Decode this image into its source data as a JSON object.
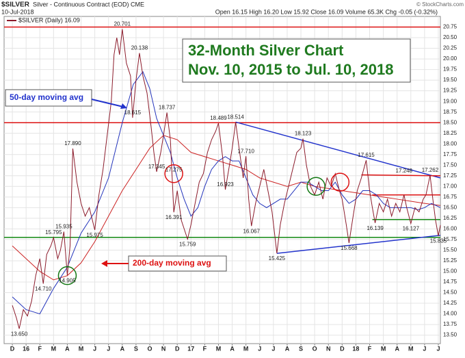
{
  "header": {
    "symbol": "$SILVER",
    "name": "Silver - Continuous Contract (EOD) CME",
    "date": "10-Jul-2018",
    "quote": "Open 16.15  High 16.20  Low 15.92  Close 16.09  Volume 65.3K  Chg -0.05 (-0.32%)",
    "credit": "© StockCharts.com"
  },
  "chart_data": {
    "type": "line",
    "legend": "$SILVER (Daily) 16.09",
    "xlim": [
      -0.6,
      31.15
    ],
    "xticks": [
      {
        "value": 0,
        "label": "D"
      },
      {
        "value": 1,
        "label": "16"
      },
      {
        "value": 2,
        "label": "F"
      },
      {
        "value": 3,
        "label": "M"
      },
      {
        "value": 4,
        "label": "A"
      },
      {
        "value": 5,
        "label": "M"
      },
      {
        "value": 6,
        "label": "J"
      },
      {
        "value": 7,
        "label": "J"
      },
      {
        "value": 8,
        "label": "A"
      },
      {
        "value": 9,
        "label": "S"
      },
      {
        "value": 10,
        "label": "O"
      },
      {
        "value": 11,
        "label": "N"
      },
      {
        "value": 12,
        "label": "D"
      },
      {
        "value": 13,
        "label": "17"
      },
      {
        "value": 14,
        "label": "F"
      },
      {
        "value": 15,
        "label": "M"
      },
      {
        "value": 16,
        "label": "A"
      },
      {
        "value": 17,
        "label": "M"
      },
      {
        "value": 18,
        "label": "J"
      },
      {
        "value": 19,
        "label": "J"
      },
      {
        "value": 20,
        "label": "A"
      },
      {
        "value": 21,
        "label": "S"
      },
      {
        "value": 22,
        "label": "O"
      },
      {
        "value": 23,
        "label": "N"
      },
      {
        "value": 24,
        "label": "D"
      },
      {
        "value": 25,
        "label": "18"
      },
      {
        "value": 26,
        "label": "F"
      },
      {
        "value": 27,
        "label": "M"
      },
      {
        "value": 28,
        "label": "A"
      },
      {
        "value": 29,
        "label": "M"
      },
      {
        "value": 30,
        "label": "J"
      },
      {
        "value": 31,
        "label": "J"
      }
    ],
    "ylim": [
      13.3,
      21.0
    ],
    "yticks": [
      {
        "value": 13.5,
        "label": "13.50"
      },
      {
        "value": 13.75,
        "label": "13.75"
      },
      {
        "value": 14,
        "label": "14.00"
      },
      {
        "value": 14.25,
        "label": "14.25"
      },
      {
        "value": 14.5,
        "label": "14.50"
      },
      {
        "value": 14.75,
        "label": "14.75"
      },
      {
        "value": 15,
        "label": "15.00"
      },
      {
        "value": 15.25,
        "label": "15.25"
      },
      {
        "value": 15.5,
        "label": "15.50"
      },
      {
        "value": 15.75,
        "label": "15.75"
      },
      {
        "value": 16,
        "label": "16.00"
      },
      {
        "value": 16.25,
        "label": "16.25"
      },
      {
        "value": 16.5,
        "label": "16.50"
      },
      {
        "value": 16.75,
        "label": "16.75"
      },
      {
        "value": 17,
        "label": "17.00"
      },
      {
        "value": 17.25,
        "label": "17.25"
      },
      {
        "value": 17.5,
        "label": "17.50"
      },
      {
        "value": 17.75,
        "label": "17.75"
      },
      {
        "value": 18,
        "label": "18.00"
      },
      {
        "value": 18.25,
        "label": "18.25"
      },
      {
        "value": 18.5,
        "label": "18.50"
      },
      {
        "value": 18.75,
        "label": "18.75"
      },
      {
        "value": 19,
        "label": "19.00"
      },
      {
        "value": 19.25,
        "label": "19.25"
      },
      {
        "value": 19.5,
        "label": "19.50"
      },
      {
        "value": 19.75,
        "label": "19.75"
      },
      {
        "value": 20,
        "label": "20.00"
      },
      {
        "value": 20.25,
        "label": "20.25"
      },
      {
        "value": 20.5,
        "label": "20.50"
      },
      {
        "value": 20.75,
        "label": "20.75"
      }
    ],
    "grid": true,
    "series": [
      {
        "name": "$SILVER",
        "color": "#8b1a2a",
        "x": [
          0,
          0.3,
          0.5,
          0.8,
          1.1,
          1.4,
          1.7,
          2,
          2.25,
          2.5,
          2.8,
          3,
          3.3,
          3.5,
          3.75,
          4,
          4.2,
          4.4,
          4.7,
          5,
          5.3,
          5.6,
          6,
          6.3,
          6.6,
          6.9,
          7.2,
          7.4,
          7.6,
          7.8,
          8,
          8.3,
          8.6,
          8.75,
          9,
          9.25,
          9.5,
          9.8,
          10.1,
          10.3,
          10.5,
          10.8,
          11,
          11.25,
          11.5,
          11.75,
          12,
          12.3,
          12.75,
          13,
          13.3,
          13.6,
          13.9,
          14.2,
          14.5,
          14.8,
          15,
          15.3,
          15.5,
          15.8,
          16,
          16.25,
          16.5,
          16.8,
          17,
          17.2,
          17.4,
          17.7,
          18,
          18.3,
          18.6,
          18.9,
          19.25,
          19.5,
          19.8,
          20.1,
          20.4,
          20.7,
          21,
          21.15,
          21.4,
          21.7,
          22,
          22.3,
          22.6,
          22.9,
          23.2,
          23.5,
          23.8,
          24,
          24.3,
          24.5,
          24.8,
          25.1,
          25.4,
          25.75,
          26,
          26.2,
          26.4,
          26.7,
          27,
          27.3,
          27.6,
          27.9,
          28.2,
          28.5,
          28.7,
          29,
          29.3,
          29.6,
          29.9,
          30.1,
          30.4,
          30.6,
          30.8,
          31,
          31.15
        ],
        "values": [
          14.2,
          13.9,
          13.65,
          14.1,
          13.95,
          14.3,
          14.9,
          15.3,
          14.71,
          15.4,
          15.6,
          15.795,
          15.3,
          15.5,
          15.935,
          14.905,
          15.6,
          17.89,
          17.1,
          16.6,
          16.3,
          16.5,
          15.975,
          16.8,
          17.4,
          18.2,
          19.0,
          20.1,
          20.5,
          20.1,
          20.701,
          19.9,
          19.6,
          18.615,
          19.5,
          20.138,
          19.6,
          19.2,
          18.4,
          17.8,
          17.345,
          17.8,
          18.2,
          18.737,
          18.1,
          16.391,
          16.9,
          16.2,
          15.759,
          16.1,
          16.6,
          17.1,
          17.3,
          17.8,
          18.1,
          18.3,
          18.489,
          17.7,
          16.923,
          17.5,
          17.9,
          18.514,
          17.9,
          17.2,
          17.71,
          16.7,
          16.067,
          16.6,
          17.0,
          17.4,
          16.9,
          16.4,
          15.425,
          16.1,
          16.6,
          17.0,
          17.4,
          17.8,
          17.9,
          18.123,
          17.5,
          17.0,
          16.8,
          17.1,
          16.7,
          17.2,
          17.0,
          17.3,
          16.9,
          16.7,
          16.1,
          15.668,
          16.3,
          16.9,
          17.2,
          17.615,
          16.9,
          16.5,
          16.139,
          16.6,
          16.4,
          16.7,
          16.3,
          16.6,
          16.4,
          16.8,
          16.5,
          16.127,
          16.5,
          16.4,
          16.7,
          16.8,
          17.262,
          16.7,
          16.2,
          15.835,
          16.09
        ]
      },
      {
        "name": "50-day moving avg",
        "color": "#2233bb",
        "x": [
          0,
          1,
          2,
          3,
          4,
          5,
          6,
          7,
          8,
          8.8,
          9.5,
          10,
          10.5,
          11,
          11.5,
          12,
          12.5,
          13,
          13.5,
          14,
          14.5,
          15,
          15.5,
          16,
          16.5,
          17,
          17.5,
          18,
          18.5,
          19,
          19.5,
          20,
          20.5,
          21,
          21.5,
          22,
          22.5,
          23,
          23.5,
          24,
          24.5,
          25,
          25.5,
          26,
          26.5,
          27,
          27.5,
          28,
          28.5,
          29,
          29.5,
          30,
          30.5,
          31.15
        ],
        "values": [
          14.4,
          14.1,
          14.0,
          14.6,
          15.1,
          15.9,
          16.4,
          17.2,
          18.5,
          19.4,
          19.7,
          19.3,
          18.6,
          18.2,
          17.8,
          17.2,
          16.7,
          16.3,
          16.5,
          17.0,
          17.4,
          17.6,
          17.7,
          17.6,
          17.6,
          17.2,
          16.8,
          16.6,
          16.5,
          16.6,
          16.7,
          16.7,
          16.9,
          17.1,
          17.1,
          17.0,
          16.9,
          16.9,
          17.1,
          16.8,
          16.6,
          16.7,
          16.9,
          16.9,
          16.8,
          16.6,
          16.5,
          16.5,
          16.5,
          16.5,
          16.45,
          16.5,
          16.6,
          16.5
        ]
      },
      {
        "name": "200-day moving avg",
        "color": "#cc2222",
        "x": [
          0,
          1,
          2,
          3,
          4,
          5,
          6,
          7,
          8,
          9,
          10,
          11,
          12,
          13,
          14,
          15,
          16,
          17,
          18,
          19,
          20,
          21,
          22,
          23,
          24,
          25,
          26,
          27,
          28,
          29,
          30,
          31.15
        ],
        "values": [
          15.6,
          15.3,
          15.0,
          14.8,
          14.9,
          15.2,
          15.7,
          16.3,
          16.9,
          17.4,
          17.9,
          18.2,
          18.1,
          17.8,
          17.7,
          17.6,
          17.5,
          17.4,
          17.2,
          17.1,
          17.0,
          17.1,
          17.0,
          16.95,
          16.9,
          16.85,
          16.8,
          16.75,
          16.7,
          16.65,
          16.6,
          16.55
        ]
      }
    ],
    "point_labels": [
      {
        "x": 0.5,
        "value": 13.65,
        "label": "13.650"
      },
      {
        "x": 2.25,
        "value": 14.71,
        "label": "14.710"
      },
      {
        "x": 3,
        "value": 15.795,
        "label": "15.795"
      },
      {
        "x": 3.75,
        "value": 15.935,
        "label": "15.935"
      },
      {
        "x": 4,
        "value": 14.905,
        "label": "14.905"
      },
      {
        "x": 4.4,
        "value": 17.89,
        "label": "17.890"
      },
      {
        "x": 6,
        "value": 15.975,
        "label": "15.975"
      },
      {
        "x": 8,
        "value": 20.701,
        "label": "20.701"
      },
      {
        "x": 9.25,
        "value": 20.138,
        "label": "20.138"
      },
      {
        "x": 8.75,
        "value": 18.615,
        "label": "18.615"
      },
      {
        "x": 11.25,
        "value": 18.737,
        "label": "18.737"
      },
      {
        "x": 11.75,
        "value": 17.275,
        "label": "17.275"
      },
      {
        "x": 10.5,
        "value": 17.345,
        "label": "17.345"
      },
      {
        "x": 11.75,
        "value": 16.391,
        "label": "16.391"
      },
      {
        "x": 12.75,
        "value": 15.759,
        "label": "15.759"
      },
      {
        "x": 15,
        "value": 18.489,
        "label": "18.489"
      },
      {
        "x": 16.25,
        "value": 18.514,
        "label": "18.514"
      },
      {
        "x": 15.5,
        "value": 16.923,
        "label": "16.923"
      },
      {
        "x": 17,
        "value": 17.71,
        "label": "17.710"
      },
      {
        "x": 17.4,
        "value": 16.067,
        "label": "16.067"
      },
      {
        "x": 19.25,
        "value": 15.425,
        "label": "15.425"
      },
      {
        "x": 21.15,
        "value": 18.123,
        "label": "18.123"
      },
      {
        "x": 24.5,
        "value": 15.668,
        "label": "15.668"
      },
      {
        "x": 25.75,
        "value": 17.615,
        "label": "17.615"
      },
      {
        "x": 26.4,
        "value": 16.139,
        "label": "16.139"
      },
      {
        "x": 29,
        "value": 16.127,
        "label": "16.127"
      },
      {
        "x": 28.5,
        "value": 17.248,
        "label": "17.248"
      },
      {
        "x": 30.4,
        "value": 17.262,
        "label": "17.262"
      },
      {
        "x": 31,
        "value": 15.835,
        "label": "15.835"
      }
    ],
    "reference_lines": [
      {
        "value": 20.75,
        "color": "#dd1111"
      },
      {
        "value": 18.5,
        "color": "#dd1111"
      },
      {
        "value": 15.8,
        "color": "#118811"
      }
    ],
    "trend_lines": [
      {
        "x": [
          16.25,
          31.15
        ],
        "values": [
          18.514,
          17.2
        ],
        "color": "#2233cc"
      },
      {
        "x": [
          19.25,
          31.15
        ],
        "values": [
          15.425,
          15.85
        ],
        "color": "#2233cc"
      },
      {
        "x": [
          25.4,
          31.15
        ],
        "values": [
          17.27,
          17.25
        ],
        "color": "#dd1111"
      },
      {
        "x": [
          26.2,
          31.15
        ],
        "values": [
          16.8,
          16.8
        ],
        "color": "#dd1111"
      },
      {
        "x": [
          26.2,
          31.15
        ],
        "values": [
          16.22,
          16.22
        ],
        "color": "#118811"
      }
    ],
    "circles": [
      {
        "x": 4,
        "value": 14.9,
        "color": "#117711"
      },
      {
        "x": 11.75,
        "value": 17.3,
        "color": "#dd1111"
      },
      {
        "x": 22.1,
        "value": 17.0,
        "color": "#117711"
      },
      {
        "x": 23.85,
        "value": 17.1,
        "color": "#dd1111"
      }
    ],
    "annotations": {
      "title_line1": "32-Month Silver Chart",
      "title_line2": "Nov. 10, 2015 to Jul. 10, 2018",
      "ma50": "50-day moving avg",
      "ma200": "200-day moving avg"
    }
  }
}
